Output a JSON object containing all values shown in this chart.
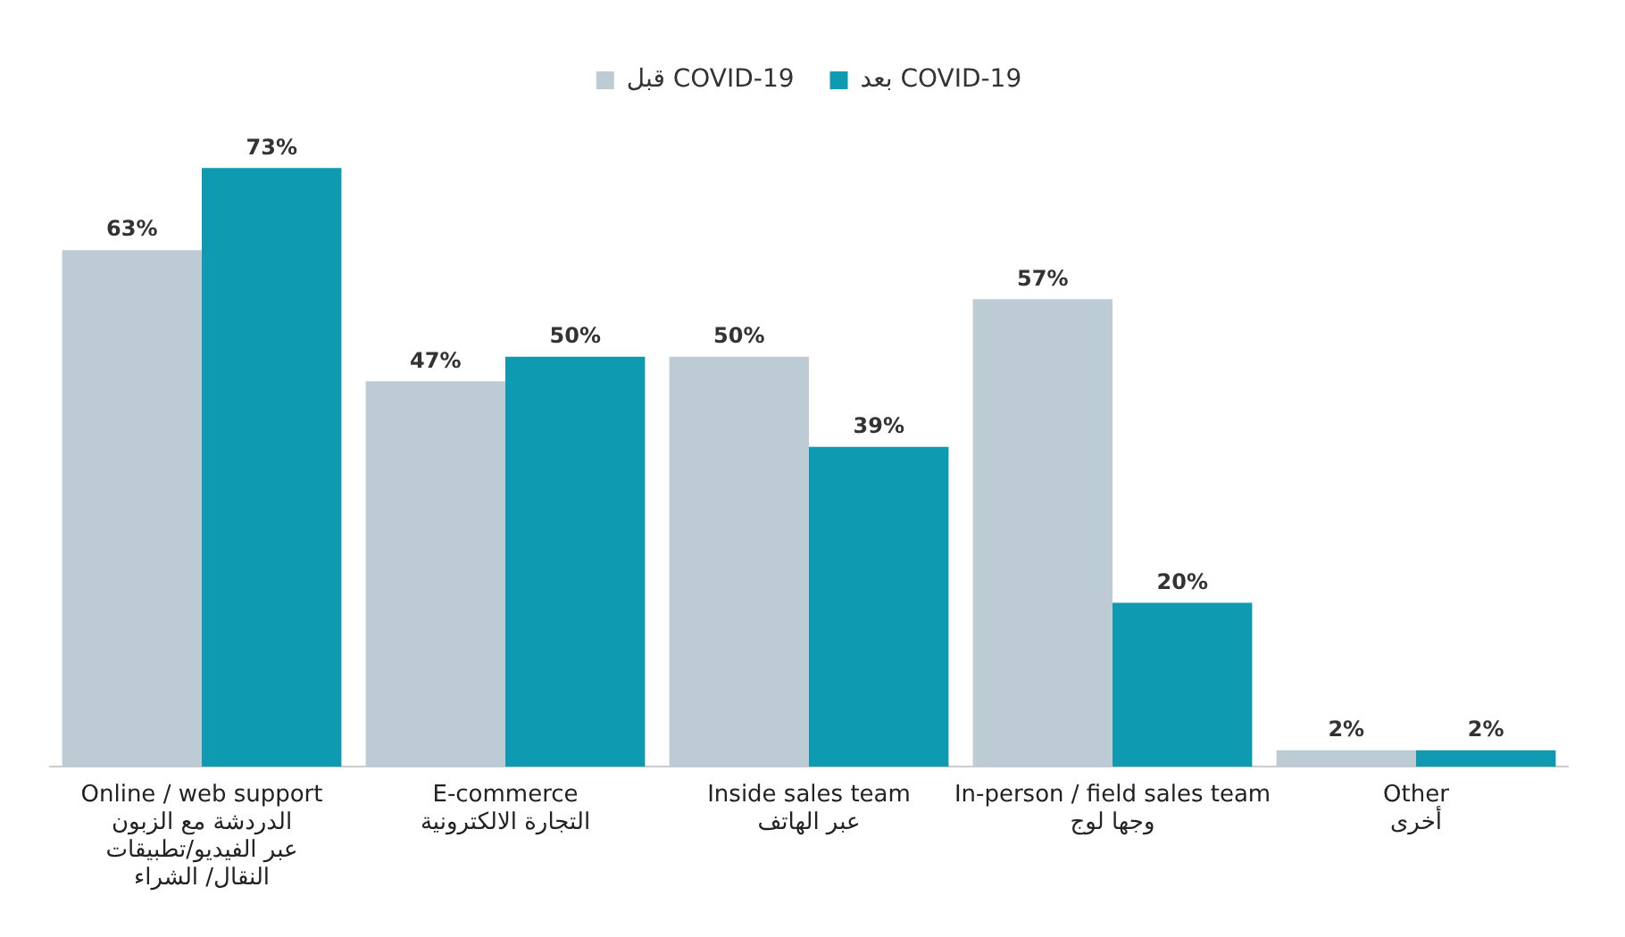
{
  "chart_data": {
    "type": "bar",
    "categories": [
      "Online / web support\nالدردشة مع الزبون\nعبر الفيديو/تطبيقات\nالنقال/ الشراء",
      "E-commerce\nالتجارة الالكترونية",
      "Inside sales team\nعبر الهاتف",
      "In-person / field sales team\nوجها لوج",
      "Other\nأخرى"
    ],
    "series": [
      {
        "name": "قبل COVID-19",
        "color": "#bccbd4",
        "values": [
          63,
          47,
          50,
          57,
          2
        ],
        "value_labels": [
          "63%",
          "47%",
          "50%",
          "57%",
          "2%"
        ]
      },
      {
        "name": "بعد COVID-19",
        "color": "#0e9ab0",
        "values": [
          73,
          50,
          39,
          20,
          2
        ],
        "value_labels": [
          "73%",
          "50%",
          "39%",
          "20%",
          "2%"
        ]
      }
    ],
    "legend": "top",
    "grid": false,
    "tick_labels": "x"
  }
}
